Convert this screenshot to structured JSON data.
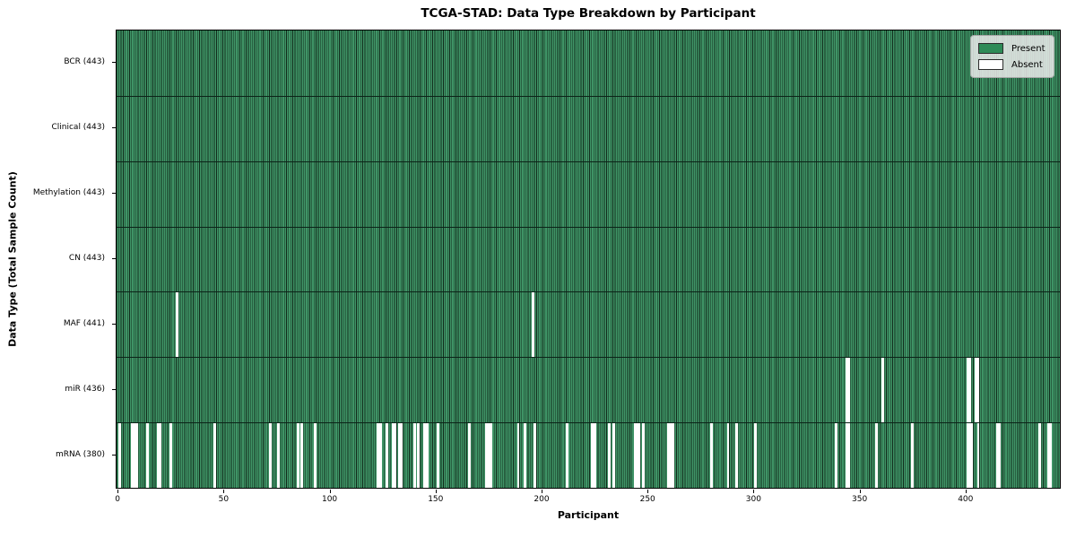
{
  "title": "TCGA-STAD: Data Type Breakdown by Participant",
  "axes": {
    "xlabel": "Participant",
    "ylabel": "Data Type (Total Sample Count)",
    "x_ticks": [
      0,
      50,
      100,
      150,
      200,
      250,
      300,
      350,
      400
    ]
  },
  "legend": {
    "items": [
      {
        "name": "present",
        "label": "Present",
        "color": "#2E8B57"
      },
      {
        "name": "absent",
        "label": "Absent",
        "color": "#FFFFFF"
      }
    ]
  },
  "colors": {
    "bar_fill": "#3F9466",
    "bar_edge": "#12세2c1c",
    "bar_edge_fixed": "#122c1c",
    "row_divider": "#0b2318",
    "plot_border": "#000000"
  },
  "chart_data": {
    "type": "heatmap",
    "title": "TCGA-STAD: Data Type Breakdown by Participant",
    "xlabel": "Participant",
    "ylabel": "Data Type (Total Sample Count)",
    "x_range": [
      0,
      443
    ],
    "total_participants": 443,
    "legend_position": "upper right",
    "rows": [
      {
        "name": "BCR",
        "label": "BCR (443)",
        "present_count": 443,
        "absent_participants": []
      },
      {
        "name": "Clinical",
        "label": "Clinical (443)",
        "present_count": 443,
        "absent_participants": []
      },
      {
        "name": "Methylation",
        "label": "Methylation (443)",
        "present_count": 443,
        "absent_participants": []
      },
      {
        "name": "CN",
        "label": "CN (443)",
        "present_count": 443,
        "absent_participants": []
      },
      {
        "name": "MAF",
        "label": "MAF (441)",
        "present_count": 441,
        "absent_participants": [
          28,
          196
        ]
      },
      {
        "name": "miR",
        "label": "miR (436)",
        "present_count": 436,
        "absent_participants": [
          344,
          345,
          361,
          401,
          402,
          405,
          406
        ]
      },
      {
        "name": "mRNA",
        "label": "mRNA (380)",
        "present_count": 380,
        "absent_participants": [
          1,
          7,
          8,
          9,
          14,
          19,
          20,
          25,
          46,
          72,
          76,
          85,
          87,
          93,
          123,
          124,
          127,
          130,
          131,
          133,
          134,
          140,
          142,
          145,
          146,
          151,
          166,
          174,
          175,
          176,
          189,
          192,
          197,
          212,
          224,
          225,
          232,
          234,
          244,
          245,
          246,
          248,
          260,
          261,
          262,
          280,
          288,
          292,
          301,
          339,
          344,
          345,
          358,
          375,
          401,
          402,
          403,
          406,
          415,
          416,
          435,
          439,
          440
        ]
      }
    ]
  }
}
